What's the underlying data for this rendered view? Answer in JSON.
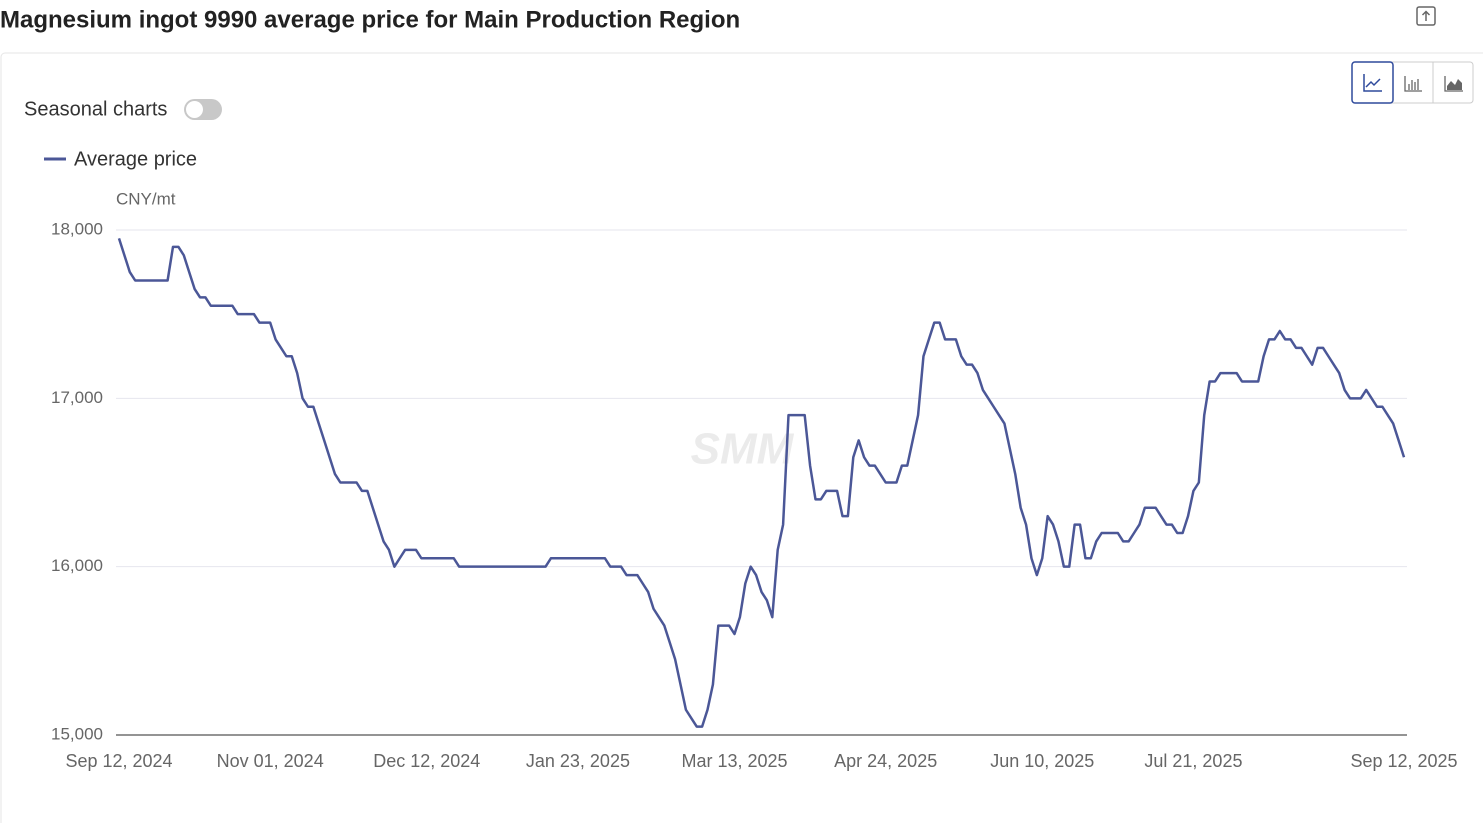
{
  "header": {
    "title": "Magnesium ingot 9990 average price for Main Production Region",
    "toggle_label": "Seasonal charts"
  },
  "chart_data": {
    "type": "line",
    "unit": "CNY/mt",
    "watermark": "SMM",
    "categories": [
      "Sep 12, 2024",
      null,
      null,
      null,
      null,
      null,
      null,
      null,
      null,
      null,
      null,
      null,
      null,
      null,
      null,
      null,
      null,
      null,
      null,
      null,
      null,
      null,
      null,
      null,
      null,
      null,
      null,
      null,
      "Nov 01, 2024",
      null,
      null,
      null,
      null,
      null,
      null,
      null,
      null,
      null,
      null,
      null,
      null,
      null,
      null,
      null,
      null,
      null,
      null,
      null,
      null,
      null,
      null,
      null,
      null,
      null,
      null,
      null,
      null,
      "Dec 12, 2024",
      null,
      null,
      null,
      null,
      null,
      null,
      null,
      null,
      null,
      null,
      null,
      null,
      null,
      null,
      null,
      null,
      null,
      null,
      null,
      null,
      null,
      null,
      null,
      null,
      null,
      null,
      null,
      "Jan 23, 2025",
      null,
      null,
      null,
      null,
      null,
      null,
      null,
      null,
      null,
      null,
      null,
      null,
      null,
      null,
      null,
      null,
      null,
      null,
      null,
      null,
      null,
      null,
      null,
      null,
      null,
      null,
      null,
      null,
      "Mar 13, 2025",
      null,
      null,
      null,
      null,
      null,
      null,
      null,
      null,
      null,
      null,
      null,
      null,
      null,
      null,
      null,
      null,
      null,
      null,
      null,
      null,
      null,
      null,
      null,
      null,
      null,
      null,
      null,
      "Apr 24, 2025",
      null,
      null,
      null,
      null,
      null,
      null,
      null,
      null,
      null,
      null,
      null,
      null,
      null,
      null,
      null,
      null,
      null,
      null,
      null,
      null,
      null,
      null,
      null,
      null,
      null,
      null,
      null,
      null,
      "Jun 10, 2025",
      null,
      null,
      null,
      null,
      null,
      null,
      null,
      null,
      null,
      null,
      null,
      null,
      null,
      null,
      null,
      null,
      null,
      null,
      null,
      null,
      null,
      null,
      null,
      null,
      null,
      null,
      null,
      "Jul 21, 2025",
      null,
      null,
      null,
      null,
      null,
      null,
      null,
      null,
      null,
      null,
      null,
      null,
      null,
      null,
      null,
      null,
      null,
      null,
      null,
      null,
      null,
      null,
      null,
      null,
      null,
      null,
      null,
      null,
      null,
      null,
      null,
      null,
      null,
      null,
      null,
      null,
      null,
      null,
      "Sep 12, 2025"
    ],
    "series": [
      {
        "name": "Average price",
        "color": "#4b5797",
        "values": [
          17950,
          17850,
          17750,
          17700,
          17700,
          17700,
          17700,
          17700,
          17700,
          17700,
          17900,
          17900,
          17850,
          17750,
          17650,
          17600,
          17600,
          17550,
          17550,
          17550,
          17550,
          17550,
          17500,
          17500,
          17500,
          17500,
          17450,
          17450,
          17450,
          17350,
          17300,
          17250,
          17250,
          17150,
          17000,
          16950,
          16950,
          16850,
          16750,
          16650,
          16550,
          16500,
          16500,
          16500,
          16500,
          16450,
          16450,
          16350,
          16250,
          16150,
          16100,
          16000,
          16050,
          16100,
          16100,
          16100,
          16050,
          16050,
          16050,
          16050,
          16050,
          16050,
          16050,
          16000,
          16000,
          16000,
          16000,
          16000,
          16000,
          16000,
          16000,
          16000,
          16000,
          16000,
          16000,
          16000,
          16000,
          16000,
          16000,
          16000,
          16050,
          16050,
          16050,
          16050,
          16050,
          16050,
          16050,
          16050,
          16050,
          16050,
          16050,
          16000,
          16000,
          16000,
          15950,
          15950,
          15950,
          15900,
          15850,
          15750,
          15700,
          15650,
          15550,
          15450,
          15300,
          15150,
          15100,
          15050,
          15050,
          15150,
          15300,
          15650,
          15650,
          15650,
          15600,
          15700,
          15900,
          16000,
          15950,
          15850,
          15800,
          15700,
          16100,
          16250,
          16900,
          16900,
          16900,
          16900,
          16600,
          16400,
          16400,
          16450,
          16450,
          16450,
          16300,
          16300,
          16650,
          16750,
          16650,
          16600,
          16600,
          16550,
          16500,
          16500,
          16500,
          16600,
          16600,
          16750,
          16900,
          17250,
          17350,
          17450,
          17450,
          17350,
          17350,
          17350,
          17250,
          17200,
          17200,
          17150,
          17050,
          17000,
          16950,
          16900,
          16850,
          16700,
          16550,
          16350,
          16250,
          16050,
          15950,
          16050,
          16300,
          16250,
          16150,
          16000,
          16000,
          16250,
          16250,
          16050,
          16050,
          16150,
          16200,
          16200,
          16200,
          16200,
          16150,
          16150,
          16200,
          16250,
          16350,
          16350,
          16350,
          16300,
          16250,
          16250,
          16200,
          16200,
          16300,
          16450,
          16500,
          16900,
          17100,
          17100,
          17150,
          17150,
          17150,
          17150,
          17100,
          17100,
          17100,
          17100,
          17250,
          17350,
          17350,
          17400,
          17350,
          17350,
          17300,
          17300,
          17250,
          17200,
          17300,
          17300,
          17250,
          17200,
          17150,
          17050,
          17000,
          17000,
          17000,
          17050,
          17000,
          16950,
          16950,
          16900,
          16850,
          16750,
          16650
        ]
      }
    ],
    "ylim": [
      15000,
      18000
    ],
    "yticks": [
      {
        "value": 15000,
        "label": "15,000"
      },
      {
        "value": 16000,
        "label": "16,000"
      },
      {
        "value": 17000,
        "label": "17,000"
      },
      {
        "value": 18000,
        "label": "18,000"
      }
    ],
    "grid": true
  }
}
